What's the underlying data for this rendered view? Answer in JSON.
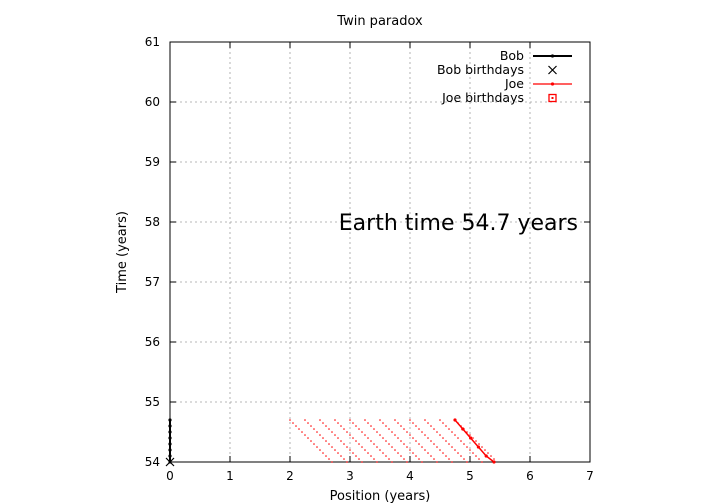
{
  "chart_data": {
    "type": "scatter",
    "title": "Twin paradox",
    "xlabel": "Position (years)",
    "ylabel": "Time (years)",
    "xlim": [
      0,
      7
    ],
    "ylim": [
      54,
      61
    ],
    "xticks": [
      0,
      1,
      2,
      3,
      4,
      5,
      6,
      7
    ],
    "yticks": [
      54,
      55,
      56,
      57,
      58,
      59,
      60,
      61
    ],
    "grid": true,
    "legend_position": "top-right",
    "annotation": "Earth time 54.7 years",
    "colors": {
      "bob": "#000000",
      "joe": "#ff0000"
    },
    "series": [
      {
        "name": "Bob",
        "style": "line-points",
        "color": "#000000",
        "points": [
          [
            0,
            54.0
          ],
          [
            0,
            54.1
          ],
          [
            0,
            54.2
          ],
          [
            0,
            54.3
          ],
          [
            0,
            54.4
          ],
          [
            0,
            54.5
          ],
          [
            0,
            54.6
          ],
          [
            0,
            54.7
          ]
        ]
      },
      {
        "name": "Bob birthdays",
        "style": "cross",
        "color": "#000000",
        "points": [
          [
            0,
            54.0
          ]
        ]
      },
      {
        "name": "Joe",
        "style": "line-points",
        "color": "#ff0000",
        "points": [
          [
            4.75,
            54.7
          ],
          [
            4.88,
            54.55
          ],
          [
            5.01,
            54.4
          ],
          [
            5.14,
            54.25
          ],
          [
            5.27,
            54.1
          ],
          [
            5.4,
            54.0
          ]
        ]
      },
      {
        "name": "Joe birthdays",
        "style": "open-square",
        "color": "#ff0000",
        "points": []
      }
    ],
    "wavefronts": {
      "color": "#ff0000",
      "x_start": [
        2.0,
        2.25,
        2.5,
        2.75,
        3.0,
        3.25,
        3.5,
        3.75,
        4.0,
        4.25,
        4.5,
        4.75
      ],
      "slope_dy_dx": -1.0,
      "y_top": 54.7,
      "y_bottom": 54.0,
      "x_max": 5.4
    }
  }
}
